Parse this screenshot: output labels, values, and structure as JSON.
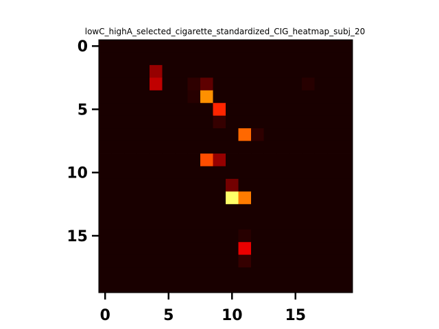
{
  "chart_data": {
    "type": "heatmap",
    "title": "lowC_highA_selected_cigarette_standardized_CIG_heatmap_subj_20",
    "xlabel": "",
    "ylabel": "",
    "n_rows": 20,
    "n_cols": 20,
    "x_ticks": [
      0,
      5,
      10,
      15
    ],
    "y_ticks": [
      0,
      5,
      10,
      15
    ],
    "xlim": [
      -0.5,
      19.5
    ],
    "ylim": [
      -0.5,
      19.5
    ],
    "y_inverted": true,
    "colormap": "hot",
    "vmin": 0,
    "vmax": 1,
    "grid": false,
    "background_value": 0.02,
    "cells": [
      {
        "row": 2,
        "col": 4,
        "value": 0.2
      },
      {
        "row": 3,
        "col": 4,
        "value": 0.26
      },
      {
        "row": 3,
        "col": 7,
        "value": 0.05
      },
      {
        "row": 3,
        "col": 8,
        "value": 0.12
      },
      {
        "row": 3,
        "col": 16,
        "value": 0.04
      },
      {
        "row": 4,
        "col": 7,
        "value": 0.04
      },
      {
        "row": 4,
        "col": 8,
        "value": 0.58
      },
      {
        "row": 5,
        "col": 9,
        "value": 0.42
      },
      {
        "row": 6,
        "col": 9,
        "value": 0.06
      },
      {
        "row": 7,
        "col": 11,
        "value": 0.52
      },
      {
        "row": 7,
        "col": 12,
        "value": 0.05
      },
      {
        "row": 9,
        "col": 8,
        "value": 0.48
      },
      {
        "row": 9,
        "col": 9,
        "value": 0.2
      },
      {
        "row": 11,
        "col": 10,
        "value": 0.15
      },
      {
        "row": 12,
        "col": 10,
        "value": 0.85
      },
      {
        "row": 12,
        "col": 11,
        "value": 0.55
      },
      {
        "row": 16,
        "col": 11,
        "value": 0.32
      },
      {
        "row": 17,
        "col": 11,
        "value": 0.06
      },
      {
        "row": 15,
        "col": 11,
        "value": 0.04
      }
    ]
  }
}
